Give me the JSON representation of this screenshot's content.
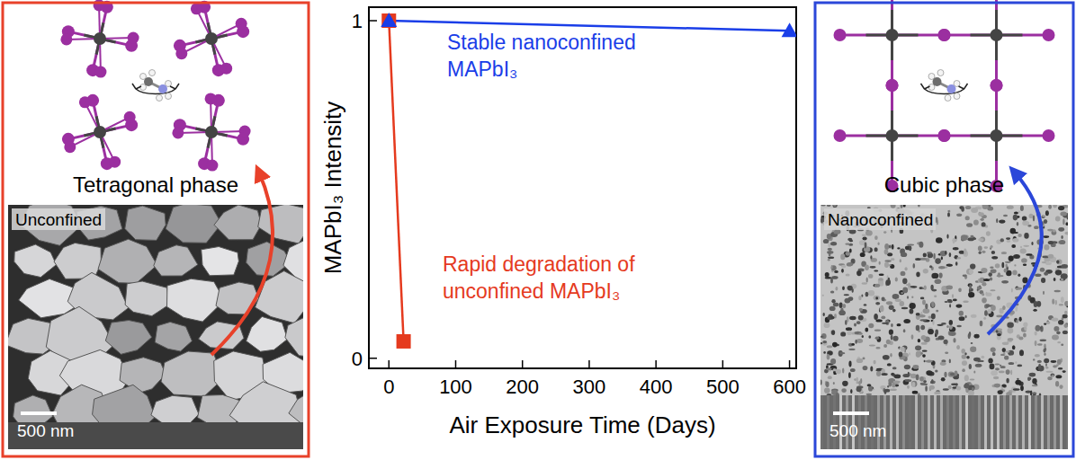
{
  "chart_data": {
    "type": "line",
    "xlabel": "Air Exposure Time (Days)",
    "ylabel": "MAPbI₃ Intensity",
    "xlim": [
      -30,
      610
    ],
    "ylim": [
      -0.03,
      1.04
    ],
    "xticks": [
      0,
      100,
      200,
      300,
      400,
      500,
      600
    ],
    "yticks": [
      0,
      1
    ],
    "grid": false,
    "series": [
      {
        "color": "#e53a1e",
        "marker": "square",
        "line_style": "solid",
        "x": [
          0,
          22
        ],
        "values": [
          1,
          0.05
        ]
      },
      {
        "color": "#1a3ee8",
        "marker": "triangle",
        "line_style": "solid",
        "x": [
          0,
          600
        ],
        "values": [
          1,
          0.97
        ]
      }
    ],
    "annotations": [
      {
        "lines": [
          "Stable nanoconfined",
          "MAPbI₃"
        ],
        "color": "#1a3ee8"
      },
      {
        "lines": [
          "Rapid degradation of",
          "unconfined MAPbI₃"
        ],
        "color": "#e53a1e"
      }
    ]
  },
  "panels": [
    {
      "title": "Tetragonal phase",
      "image_label": "Unconfined",
      "scale_bar": "500 nm",
      "color": "#e8412a"
    },
    {
      "title": "Cubic phase",
      "image_label": "Nanoconfined",
      "scale_bar": "500 nm",
      "color": "#2b47d9"
    }
  ]
}
